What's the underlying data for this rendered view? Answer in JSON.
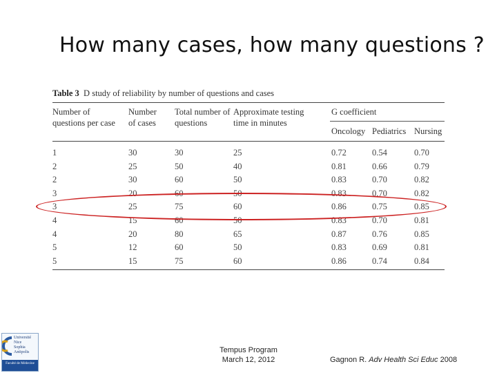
{
  "slide": {
    "title": "How many cases, how many questions ?"
  },
  "table": {
    "label": "Table 3",
    "caption": "D study of reliability by number of questions and cases",
    "headers": [
      "Number of\nquestions per case",
      "Number\nof cases",
      "Total number of\nquestions",
      "Approximate testing\ntime in minutes"
    ],
    "group_header": "G coefficient",
    "subheaders": [
      "Oncology",
      "Pediatrics",
      "Nursing"
    ],
    "rows": [
      [
        "1",
        "30",
        "30",
        "25",
        "0.72",
        "0.54",
        "0.70"
      ],
      [
        "2",
        "25",
        "50",
        "40",
        "0.81",
        "0.66",
        "0.79"
      ],
      [
        "2",
        "30",
        "60",
        "50",
        "0.83",
        "0.70",
        "0.82"
      ],
      [
        "3",
        "20",
        "60",
        "50",
        "0.83",
        "0.70",
        "0.82"
      ],
      [
        "3",
        "25",
        "75",
        "60",
        "0.86",
        "0.75",
        "0.85"
      ],
      [
        "4",
        "15",
        "60",
        "50",
        "0.83",
        "0.70",
        "0.81"
      ],
      [
        "4",
        "20",
        "80",
        "65",
        "0.87",
        "0.76",
        "0.85"
      ],
      [
        "5",
        "12",
        "60",
        "50",
        "0.83",
        "0.69",
        "0.81"
      ],
      [
        "5",
        "15",
        "75",
        "60",
        "0.86",
        "0.74",
        "0.84"
      ]
    ],
    "highlighted_row_index": 4,
    "highlight_color": "#cc2222"
  },
  "logo": {
    "text_lines": [
      "Université",
      "Nice",
      "Sophia Antipolis",
      "Faculté de Médecine"
    ]
  },
  "footer": {
    "program": "Tempus Program",
    "date": "March 12, 2012",
    "citation_author": "Gagnon R.",
    "citation_journal": "Adv Health Sci Educ",
    "citation_year": "2008"
  }
}
